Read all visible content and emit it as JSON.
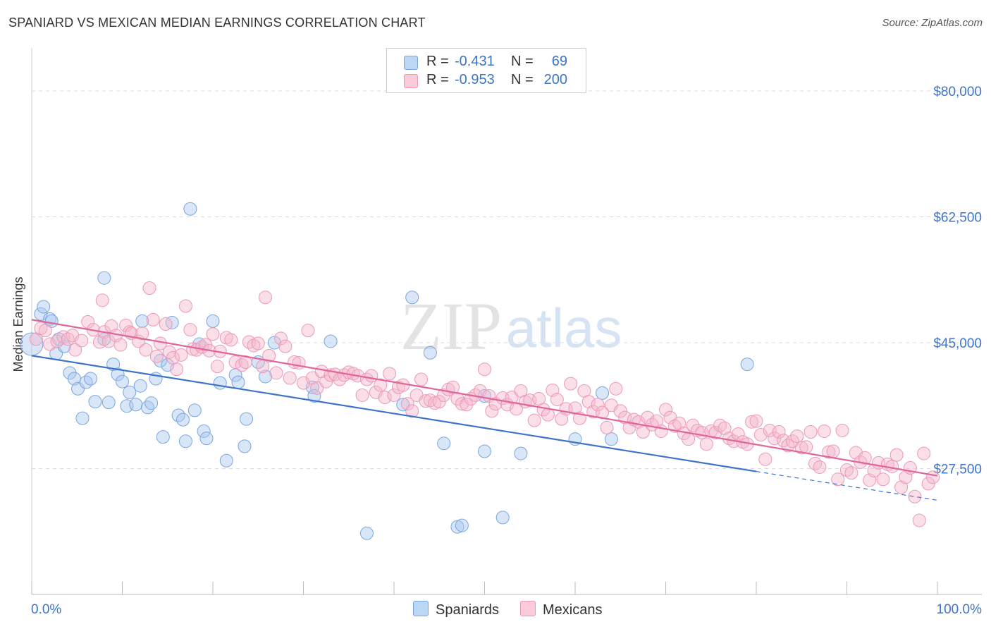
{
  "title": "SPANIARD VS MEXICAN MEDIAN EARNINGS CORRELATION CHART",
  "source": "Source: ZipAtlas.com",
  "watermark": {
    "zip": "ZIP",
    "atlas": "atlas"
  },
  "legend": {
    "r_label": "R =",
    "n_label": "N =",
    "rows": [
      {
        "r": "-0.431",
        "n": "69"
      },
      {
        "r": "-0.953",
        "n": "200"
      }
    ]
  },
  "chart_data": {
    "type": "scatter",
    "title": "SPANIARD VS MEXICAN MEDIAN EARNINGS CORRELATION CHART",
    "xlabel": "",
    "ylabel": "Median Earnings",
    "xlim": [
      0,
      1
    ],
    "ylim": [
      10000,
      85000
    ],
    "x_tick_labels": [
      "0.0%",
      "100.0%"
    ],
    "y_ticks": [
      27500,
      45000,
      62500,
      80000
    ],
    "y_tick_labels": [
      "$27,500",
      "$45,000",
      "$62,500",
      "$80,000"
    ],
    "grid": true,
    "legend_position": "bottom",
    "colors": {
      "spaniards": "#a8c8f0",
      "spaniards_line": "#3d74c9",
      "mexicans": "#f5b8cc",
      "mexicans_line": "#e0669a"
    },
    "series": [
      {
        "name": "Spaniards",
        "r": -0.431,
        "n": 69,
        "trend": {
          "x0": 0.0,
          "y0": 43200,
          "x1": 0.8,
          "y1": 27100,
          "dashed_to_x": 1.0,
          "dashed_to_y": 23100
        },
        "points": [
          [
            0.0,
            44800
          ],
          [
            0.01,
            49000
          ],
          [
            0.013,
            50000
          ],
          [
            0.02,
            48300
          ],
          [
            0.022,
            48000
          ],
          [
            0.027,
            43500
          ],
          [
            0.03,
            45500
          ],
          [
            0.036,
            44500
          ],
          [
            0.042,
            40800
          ],
          [
            0.047,
            40000
          ],
          [
            0.051,
            38600
          ],
          [
            0.056,
            34500
          ],
          [
            0.06,
            39500
          ],
          [
            0.065,
            40000
          ],
          [
            0.07,
            36800
          ],
          [
            0.08,
            45500
          ],
          [
            0.08,
            54000
          ],
          [
            0.085,
            36700
          ],
          [
            0.09,
            42000
          ],
          [
            0.095,
            40600
          ],
          [
            0.1,
            39600
          ],
          [
            0.105,
            36200
          ],
          [
            0.108,
            38100
          ],
          [
            0.115,
            36400
          ],
          [
            0.12,
            39000
          ],
          [
            0.122,
            48000
          ],
          [
            0.128,
            36000
          ],
          [
            0.132,
            36600
          ],
          [
            0.137,
            40000
          ],
          [
            0.142,
            42500
          ],
          [
            0.145,
            31900
          ],
          [
            0.15,
            41900
          ],
          [
            0.155,
            47800
          ],
          [
            0.162,
            34900
          ],
          [
            0.167,
            34300
          ],
          [
            0.17,
            31300
          ],
          [
            0.175,
            63600
          ],
          [
            0.18,
            35600
          ],
          [
            0.185,
            44800
          ],
          [
            0.19,
            32700
          ],
          [
            0.193,
            31700
          ],
          [
            0.2,
            48000
          ],
          [
            0.208,
            39400
          ],
          [
            0.215,
            28600
          ],
          [
            0.225,
            40500
          ],
          [
            0.228,
            39500
          ],
          [
            0.235,
            30600
          ],
          [
            0.237,
            34400
          ],
          [
            0.258,
            40300
          ],
          [
            0.25,
            42300
          ],
          [
            0.268,
            45000
          ],
          [
            0.31,
            38800
          ],
          [
            0.312,
            37600
          ],
          [
            0.33,
            45200
          ],
          [
            0.37,
            18500
          ],
          [
            0.41,
            36400
          ],
          [
            0.42,
            51300
          ],
          [
            0.44,
            43600
          ],
          [
            0.455,
            31000
          ],
          [
            0.47,
            19400
          ],
          [
            0.475,
            19600
          ],
          [
            0.5,
            29900
          ],
          [
            0.5,
            37600
          ],
          [
            0.52,
            20700
          ],
          [
            0.54,
            29600
          ],
          [
            0.6,
            31600
          ],
          [
            0.63,
            38000
          ],
          [
            0.64,
            31600
          ],
          [
            0.79,
            42000
          ]
        ]
      },
      {
        "name": "Mexicans",
        "r": -0.953,
        "n": 200,
        "trend": {
          "x0": 0.0,
          "y0": 48200,
          "x1": 1.0,
          "y1": 26500
        },
        "points": [
          [
            0.005,
            45500
          ],
          [
            0.01,
            47000
          ],
          [
            0.015,
            46700
          ],
          [
            0.02,
            44800
          ],
          [
            0.028,
            45200
          ],
          [
            0.035,
            45800
          ],
          [
            0.04,
            45500
          ],
          [
            0.045,
            46000
          ],
          [
            0.048,
            44000
          ],
          [
            0.055,
            45300
          ],
          [
            0.062,
            47900
          ],
          [
            0.068,
            46800
          ],
          [
            0.075,
            45100
          ],
          [
            0.078,
            50900
          ],
          [
            0.08,
            46500
          ],
          [
            0.085,
            45200
          ],
          [
            0.088,
            47300
          ],
          [
            0.093,
            46000
          ],
          [
            0.098,
            44700
          ],
          [
            0.104,
            47400
          ],
          [
            0.108,
            46500
          ],
          [
            0.11,
            46300
          ],
          [
            0.118,
            45200
          ],
          [
            0.122,
            46300
          ],
          [
            0.126,
            44000
          ],
          [
            0.13,
            52600
          ],
          [
            0.134,
            48200
          ],
          [
            0.138,
            43100
          ],
          [
            0.142,
            44900
          ],
          [
            0.148,
            47600
          ],
          [
            0.152,
            43700
          ],
          [
            0.156,
            42900
          ],
          [
            0.16,
            41300
          ],
          [
            0.165,
            43300
          ],
          [
            0.17,
            50100
          ],
          [
            0.175,
            46800
          ],
          [
            0.178,
            44100
          ],
          [
            0.182,
            44000
          ],
          [
            0.188,
            44400
          ],
          [
            0.192,
            44700
          ],
          [
            0.196,
            43900
          ],
          [
            0.2,
            46200
          ],
          [
            0.205,
            41700
          ],
          [
            0.208,
            43800
          ],
          [
            0.215,
            45700
          ],
          [
            0.22,
            45400
          ],
          [
            0.225,
            42300
          ],
          [
            0.232,
            41900
          ],
          [
            0.236,
            42300
          ],
          [
            0.24,
            45100
          ],
          [
            0.245,
            44600
          ],
          [
            0.25,
            44900
          ],
          [
            0.255,
            41700
          ],
          [
            0.258,
            51300
          ],
          [
            0.262,
            43200
          ],
          [
            0.27,
            40800
          ],
          [
            0.275,
            45600
          ],
          [
            0.28,
            44500
          ],
          [
            0.285,
            40100
          ],
          [
            0.29,
            42300
          ],
          [
            0.295,
            42200
          ],
          [
            0.3,
            39400
          ],
          [
            0.305,
            46700
          ],
          [
            0.31,
            40100
          ],
          [
            0.315,
            38700
          ],
          [
            0.32,
            41000
          ],
          [
            0.325,
            39600
          ],
          [
            0.33,
            40500
          ],
          [
            0.335,
            40600
          ],
          [
            0.34,
            39900
          ],
          [
            0.345,
            40500
          ],
          [
            0.35,
            40900
          ],
          [
            0.355,
            40700
          ],
          [
            0.36,
            40400
          ],
          [
            0.365,
            37700
          ],
          [
            0.37,
            39900
          ],
          [
            0.375,
            40400
          ],
          [
            0.38,
            38100
          ],
          [
            0.385,
            39100
          ],
          [
            0.39,
            37400
          ],
          [
            0.395,
            40700
          ],
          [
            0.4,
            37700
          ],
          [
            0.405,
            38800
          ],
          [
            0.41,
            39100
          ],
          [
            0.415,
            36500
          ],
          [
            0.42,
            35500
          ],
          [
            0.425,
            37700
          ],
          [
            0.43,
            39900
          ],
          [
            0.435,
            36900
          ],
          [
            0.44,
            37000
          ],
          [
            0.445,
            36600
          ],
          [
            0.45,
            36800
          ],
          [
            0.455,
            37700
          ],
          [
            0.46,
            38500
          ],
          [
            0.465,
            38800
          ],
          [
            0.47,
            37200
          ],
          [
            0.475,
            36500
          ],
          [
            0.48,
            36400
          ],
          [
            0.485,
            37200
          ],
          [
            0.49,
            37700
          ],
          [
            0.495,
            38300
          ],
          [
            0.5,
            41300
          ],
          [
            0.505,
            37600
          ],
          [
            0.508,
            35500
          ],
          [
            0.512,
            36500
          ],
          [
            0.52,
            37300
          ],
          [
            0.525,
            36400
          ],
          [
            0.53,
            37400
          ],
          [
            0.535,
            35800
          ],
          [
            0.54,
            38300
          ],
          [
            0.545,
            36800
          ],
          [
            0.55,
            37000
          ],
          [
            0.555,
            34200
          ],
          [
            0.56,
            37200
          ],
          [
            0.565,
            35700
          ],
          [
            0.57,
            35000
          ],
          [
            0.575,
            38400
          ],
          [
            0.58,
            37100
          ],
          [
            0.585,
            34400
          ],
          [
            0.59,
            35800
          ],
          [
            0.595,
            39300
          ],
          [
            0.6,
            35900
          ],
          [
            0.605,
            34500
          ],
          [
            0.61,
            38300
          ],
          [
            0.615,
            36800
          ],
          [
            0.62,
            35400
          ],
          [
            0.625,
            36400
          ],
          [
            0.63,
            35300
          ],
          [
            0.635,
            33200
          ],
          [
            0.64,
            36300
          ],
          [
            0.645,
            38600
          ],
          [
            0.65,
            35500
          ],
          [
            0.655,
            34600
          ],
          [
            0.66,
            33200
          ],
          [
            0.665,
            34300
          ],
          [
            0.67,
            34000
          ],
          [
            0.675,
            32600
          ],
          [
            0.68,
            34600
          ],
          [
            0.685,
            33600
          ],
          [
            0.69,
            34100
          ],
          [
            0.695,
            32700
          ],
          [
            0.7,
            35700
          ],
          [
            0.705,
            34600
          ],
          [
            0.71,
            33400
          ],
          [
            0.715,
            33800
          ],
          [
            0.72,
            32400
          ],
          [
            0.725,
            31600
          ],
          [
            0.73,
            33500
          ],
          [
            0.735,
            32800
          ],
          [
            0.74,
            32500
          ],
          [
            0.745,
            30900
          ],
          [
            0.75,
            32700
          ],
          [
            0.755,
            32500
          ],
          [
            0.76,
            33500
          ],
          [
            0.765,
            33100
          ],
          [
            0.77,
            31700
          ],
          [
            0.775,
            31300
          ],
          [
            0.78,
            32300
          ],
          [
            0.785,
            31200
          ],
          [
            0.79,
            30900
          ],
          [
            0.795,
            34000
          ],
          [
            0.8,
            34100
          ],
          [
            0.805,
            32200
          ],
          [
            0.81,
            28800
          ],
          [
            0.815,
            32800
          ],
          [
            0.82,
            31700
          ],
          [
            0.825,
            32600
          ],
          [
            0.83,
            31400
          ],
          [
            0.835,
            30700
          ],
          [
            0.84,
            31300
          ],
          [
            0.845,
            32000
          ],
          [
            0.85,
            30400
          ],
          [
            0.855,
            30500
          ],
          [
            0.86,
            32600
          ],
          [
            0.865,
            28200
          ],
          [
            0.87,
            27700
          ],
          [
            0.875,
            32700
          ],
          [
            0.88,
            29800
          ],
          [
            0.885,
            29900
          ],
          [
            0.89,
            26000
          ],
          [
            0.895,
            32800
          ],
          [
            0.9,
            27300
          ],
          [
            0.905,
            26900
          ],
          [
            0.91,
            29700
          ],
          [
            0.915,
            28400
          ],
          [
            0.92,
            29000
          ],
          [
            0.925,
            25900
          ],
          [
            0.93,
            27200
          ],
          [
            0.935,
            28300
          ],
          [
            0.94,
            26000
          ],
          [
            0.945,
            28100
          ],
          [
            0.95,
            27800
          ],
          [
            0.955,
            29400
          ],
          [
            0.96,
            24900
          ],
          [
            0.965,
            26300
          ],
          [
            0.97,
            27600
          ],
          [
            0.975,
            23600
          ],
          [
            0.98,
            20300
          ],
          [
            0.985,
            29600
          ],
          [
            0.99,
            25400
          ],
          [
            0.995,
            26300
          ]
        ]
      }
    ]
  }
}
